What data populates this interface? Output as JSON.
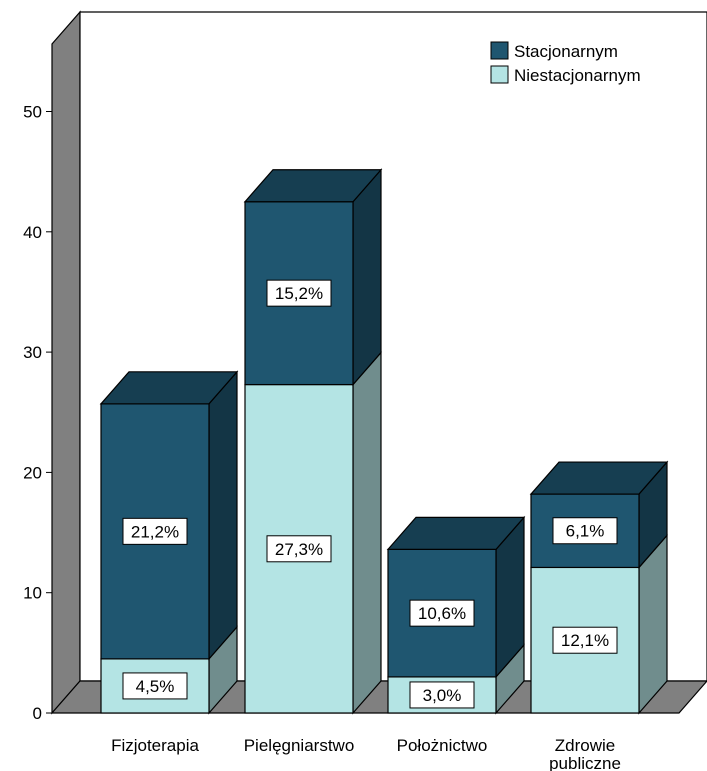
{
  "chart_data": {
    "type": "bar",
    "stacked": true,
    "style": "3d",
    "title": "",
    "xlabel": "",
    "ylabel": "",
    "ylim": [
      0,
      55
    ],
    "yticks": [
      0,
      10,
      20,
      30,
      40,
      50
    ],
    "categories": [
      "Fizjoterapia",
      "Pielęgniarstwo",
      "Położnictwo",
      "Zdrowie publiczne"
    ],
    "series": [
      {
        "name": "Niestacjonarnym",
        "color": "#B4E4E4",
        "values": [
          4.5,
          27.3,
          3.0,
          12.1
        ],
        "labels": [
          "4,5%",
          "27,3%",
          "3,0%",
          "12,1%"
        ]
      },
      {
        "name": "Stacjonarnym",
        "color": "#1F5670",
        "values": [
          21.2,
          15.2,
          10.6,
          6.1
        ],
        "labels": [
          "21,2%",
          "15,2%",
          "10,6%",
          "6,1%"
        ]
      }
    ],
    "legend": {
      "position": "top-right",
      "order": [
        "Stacjonarnym",
        "Niestacjonarnym"
      ]
    },
    "grid": false
  }
}
